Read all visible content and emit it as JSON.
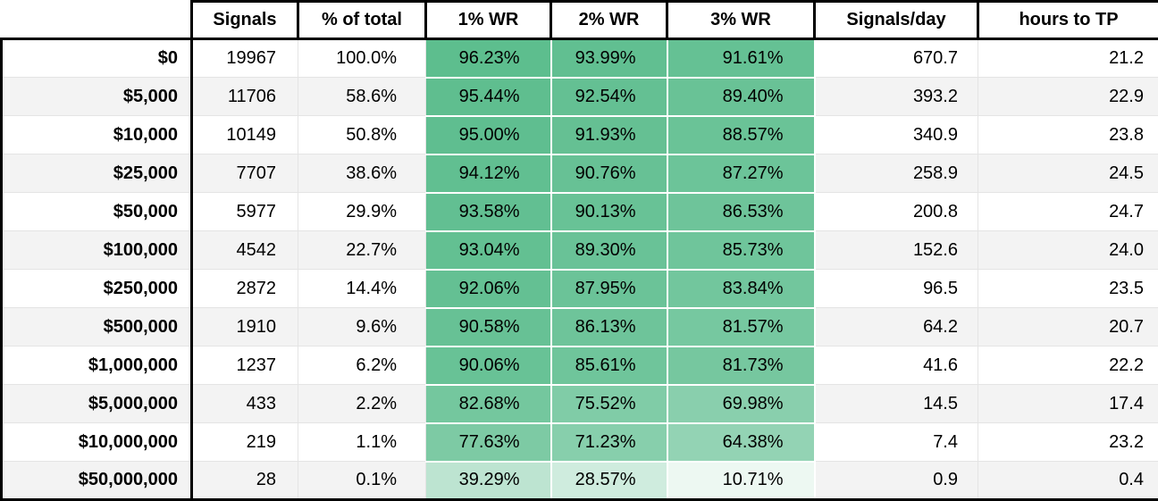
{
  "chart_data": {
    "type": "table",
    "title": "",
    "columns": [
      "",
      "Signals",
      "% of total",
      "1% WR",
      "2% WR",
      "3% WR",
      "Signals/day",
      "hours to TP"
    ],
    "heatmap": {
      "applies_to_columns": [
        "1% WR",
        "2% WR",
        "3% WR"
      ],
      "scale_min_color": "#ffffff",
      "scale_max_color": "#57bb8a",
      "scale_min_value": 0,
      "scale_max_value": 100
    },
    "stripe_color": "#f3f3f3",
    "border_color": "#000000",
    "rows": [
      {
        "label": "$0",
        "signals": "19967",
        "pct_of_total": "100.0%",
        "wr1": "96.23%",
        "wr2": "93.99%",
        "wr3": "91.61%",
        "signals_per_day": "670.7",
        "hours_to_tp": "21.2"
      },
      {
        "label": "$5,000",
        "signals": "11706",
        "pct_of_total": "58.6%",
        "wr1": "95.44%",
        "wr2": "92.54%",
        "wr3": "89.40%",
        "signals_per_day": "393.2",
        "hours_to_tp": "22.9"
      },
      {
        "label": "$10,000",
        "signals": "10149",
        "pct_of_total": "50.8%",
        "wr1": "95.00%",
        "wr2": "91.93%",
        "wr3": "88.57%",
        "signals_per_day": "340.9",
        "hours_to_tp": "23.8"
      },
      {
        "label": "$25,000",
        "signals": "7707",
        "pct_of_total": "38.6%",
        "wr1": "94.12%",
        "wr2": "90.76%",
        "wr3": "87.27%",
        "signals_per_day": "258.9",
        "hours_to_tp": "24.5"
      },
      {
        "label": "$50,000",
        "signals": "5977",
        "pct_of_total": "29.9%",
        "wr1": "93.58%",
        "wr2": "90.13%",
        "wr3": "86.53%",
        "signals_per_day": "200.8",
        "hours_to_tp": "24.7"
      },
      {
        "label": "$100,000",
        "signals": "4542",
        "pct_of_total": "22.7%",
        "wr1": "93.04%",
        "wr2": "89.30%",
        "wr3": "85.73%",
        "signals_per_day": "152.6",
        "hours_to_tp": "24.0"
      },
      {
        "label": "$250,000",
        "signals": "2872",
        "pct_of_total": "14.4%",
        "wr1": "92.06%",
        "wr2": "87.95%",
        "wr3": "83.84%",
        "signals_per_day": "96.5",
        "hours_to_tp": "23.5"
      },
      {
        "label": "$500,000",
        "signals": "1910",
        "pct_of_total": "9.6%",
        "wr1": "90.58%",
        "wr2": "86.13%",
        "wr3": "81.57%",
        "signals_per_day": "64.2",
        "hours_to_tp": "20.7"
      },
      {
        "label": "$1,000,000",
        "signals": "1237",
        "pct_of_total": "6.2%",
        "wr1": "90.06%",
        "wr2": "85.61%",
        "wr3": "81.73%",
        "signals_per_day": "41.6",
        "hours_to_tp": "22.2"
      },
      {
        "label": "$5,000,000",
        "signals": "433",
        "pct_of_total": "2.2%",
        "wr1": "82.68%",
        "wr2": "75.52%",
        "wr3": "69.98%",
        "signals_per_day": "14.5",
        "hours_to_tp": "17.4"
      },
      {
        "label": "$10,000,000",
        "signals": "219",
        "pct_of_total": "1.1%",
        "wr1": "77.63%",
        "wr2": "71.23%",
        "wr3": "64.38%",
        "signals_per_day": "7.4",
        "hours_to_tp": "23.2"
      },
      {
        "label": "$50,000,000",
        "signals": "28",
        "pct_of_total": "0.1%",
        "wr1": "39.29%",
        "wr2": "28.57%",
        "wr3": "10.71%",
        "signals_per_day": "0.9",
        "hours_to_tp": "0.4"
      }
    ]
  }
}
